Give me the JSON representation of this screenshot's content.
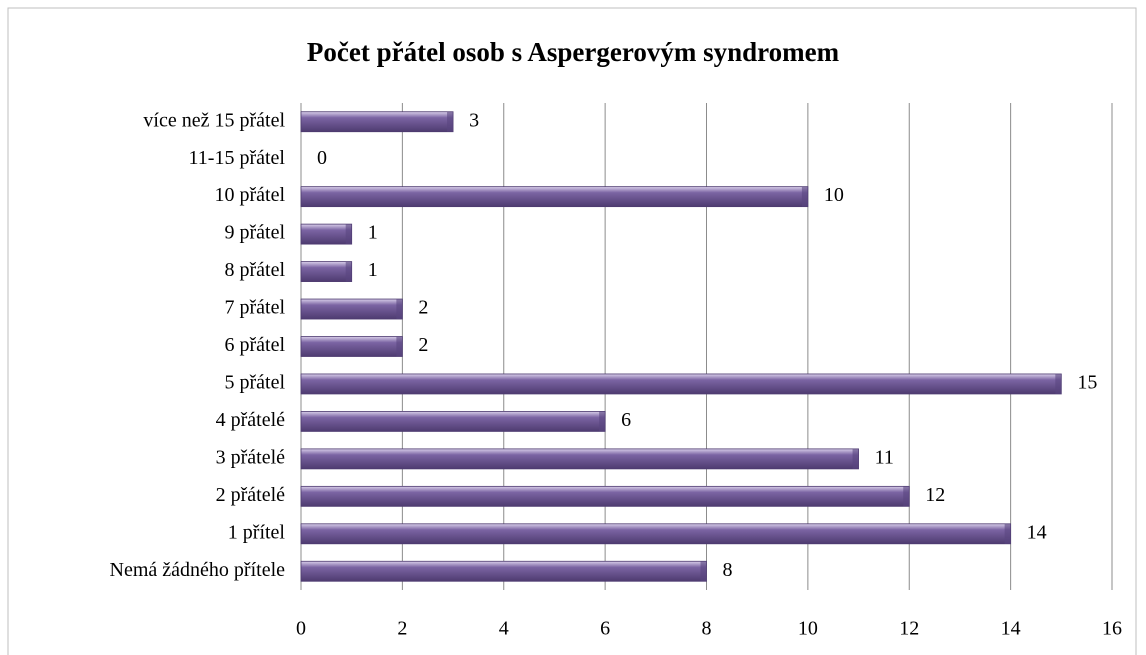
{
  "chart_data": {
    "type": "bar",
    "orientation": "horizontal",
    "title": "Počet přátel osob s Aspergerovým syndromem",
    "categories": [
      "více než 15 přátel",
      "11-15 přátel",
      "10 přátel",
      "9 přátel",
      "8 přátel",
      "7 přátel",
      "6 přátel",
      "5 přátel",
      "4 přátelé",
      "3 přátelé",
      "2 přátelé",
      "1 přítel",
      "Nemá žádného přítele"
    ],
    "values": [
      3,
      0,
      10,
      1,
      1,
      2,
      2,
      15,
      6,
      11,
      12,
      14,
      8
    ],
    "color": "#7b64a3",
    "xlim": [
      0,
      16
    ],
    "xticks": [
      0,
      2,
      4,
      6,
      8,
      10,
      12,
      14,
      16
    ],
    "grid": true
  }
}
